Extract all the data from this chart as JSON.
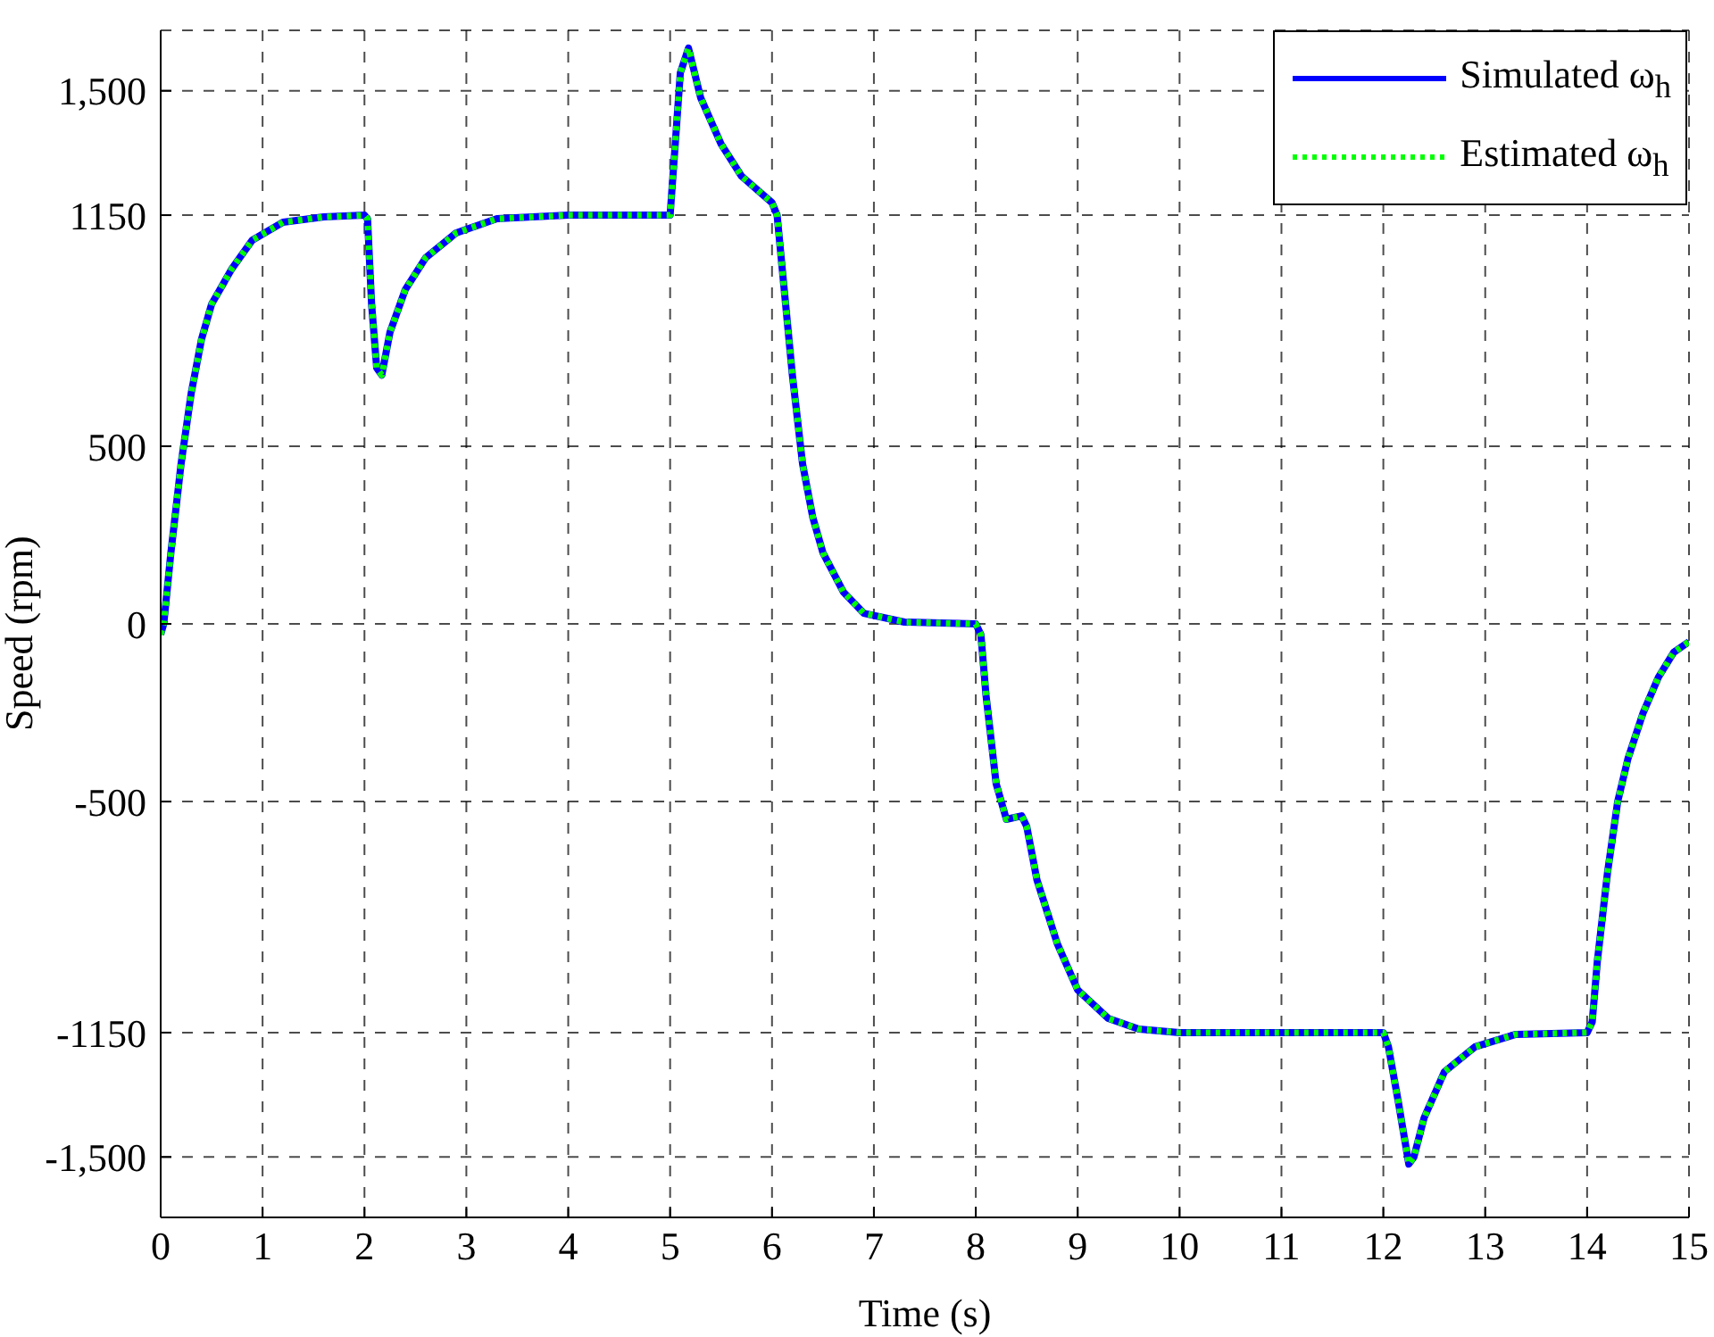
{
  "chart_data": {
    "type": "line",
    "xlabel": "Time (s)",
    "ylabel": "Speed (rpm)",
    "x": [
      0,
      0.03,
      0.1,
      0.2,
      0.3,
      0.4,
      0.5,
      0.7,
      0.9,
      1.2,
      1.6,
      2.0,
      2.03,
      2.07,
      2.12,
      2.17,
      2.25,
      2.4,
      2.6,
      2.9,
      3.3,
      4,
      5.0,
      5.05,
      5.1,
      5.18,
      5.3,
      5.5,
      5.7,
      6.0,
      6.05,
      6.1,
      6.2,
      6.3,
      6.4,
      6.5,
      6.7,
      6.9,
      7.3,
      8.0,
      8.05,
      8.1,
      8.2,
      8.3,
      8.45,
      8.5,
      8.6,
      8.8,
      9.0,
      9.3,
      9.6,
      10,
      12.0,
      12.05,
      12.15,
      12.25,
      12.3,
      12.4,
      12.6,
      12.9,
      13.3,
      14.0,
      14.05,
      14.1,
      14.2,
      14.3,
      14.4,
      14.55,
      14.7,
      14.85,
      15
    ],
    "series": [
      {
        "name": "Simulated ω$_{h}$",
        "color": "#0000ff",
        "line_style": "solid",
        "values": [
          -30,
          0,
          200,
          450,
          650,
          800,
          900,
          1000,
          1080,
          1130,
          1145,
          1150,
          1140,
          900,
          720,
          700,
          820,
          940,
          1030,
          1100,
          1140,
          1150,
          1150,
          1350,
          1550,
          1620,
          1480,
          1350,
          1260,
          1185,
          1150,
          1000,
          700,
          450,
          300,
          200,
          90,
          30,
          5,
          0,
          -30,
          -200,
          -450,
          -550,
          -540,
          -570,
          -720,
          -900,
          -1030,
          -1110,
          -1140,
          -1150,
          -1150,
          -1190,
          -1350,
          -1520,
          -1500,
          -1390,
          -1260,
          -1190,
          -1155,
          -1150,
          -1120,
          -950,
          -700,
          -500,
          -380,
          -250,
          -150,
          -80,
          -50
        ]
      },
      {
        "name": "Estimated ω$_{h}$",
        "color": "#00ff00",
        "line_style": "dotted",
        "values": [
          -30,
          0,
          200,
          450,
          650,
          800,
          900,
          1000,
          1080,
          1130,
          1145,
          1150,
          1140,
          900,
          720,
          700,
          820,
          940,
          1030,
          1100,
          1140,
          1150,
          1150,
          1350,
          1550,
          1620,
          1480,
          1350,
          1260,
          1185,
          1150,
          1000,
          700,
          450,
          300,
          200,
          90,
          30,
          5,
          0,
          -30,
          -200,
          -450,
          -550,
          -540,
          -570,
          -720,
          -900,
          -1030,
          -1110,
          -1140,
          -1150,
          -1150,
          -1190,
          -1350,
          -1520,
          -1500,
          -1390,
          -1260,
          -1190,
          -1155,
          -1150,
          -1120,
          -950,
          -700,
          -500,
          -380,
          -250,
          -150,
          -80,
          -50
        ]
      }
    ],
    "xlim": [
      0,
      15
    ],
    "xticks": [
      0,
      1,
      2,
      3,
      4,
      5,
      6,
      7,
      8,
      9,
      10,
      11,
      12,
      13,
      14,
      15
    ],
    "ylim": [
      -1670,
      1670
    ],
    "yticks": [
      {
        "value": -1500,
        "label": "-1,500"
      },
      -1150,
      -500,
      0,
      500,
      1150,
      {
        "value": 1500,
        "label": "1,500"
      }
    ],
    "grid": true,
    "legend": "top right",
    "marker": "none"
  }
}
